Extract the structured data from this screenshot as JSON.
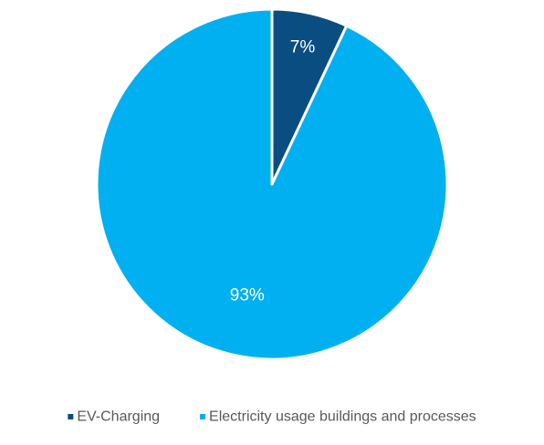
{
  "chart_data": {
    "type": "pie",
    "categories": [
      "EV-Charging",
      "Electricity usage buildings and processes"
    ],
    "values": [
      7,
      93
    ],
    "data_labels": [
      "7%",
      "93%"
    ],
    "colors": [
      "#0a4d80",
      "#00b0f0"
    ],
    "slice_border_color": "#ffffff",
    "start_angle_deg": 0,
    "direction": "clockwise",
    "legend_position": "bottom",
    "legend_text_color": "#595959",
    "title": ""
  }
}
